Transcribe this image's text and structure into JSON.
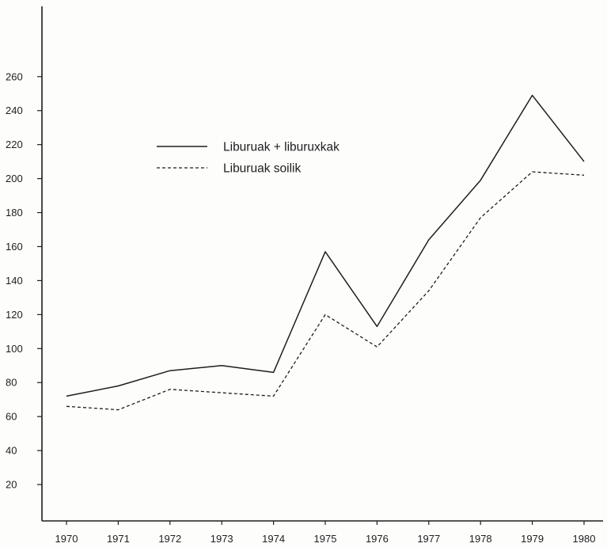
{
  "chart_data": {
    "type": "line",
    "x": [
      "1970",
      "1971",
      "1972",
      "1973",
      "1974",
      "1975",
      "1976",
      "1977",
      "1978",
      "1979",
      "1980"
    ],
    "series": [
      {
        "name": "Liburuak + liburuxkak",
        "style": "solid",
        "values": [
          72,
          78,
          87,
          90,
          86,
          157,
          113,
          164,
          199,
          249,
          210
        ]
      },
      {
        "name": "Liburuak soilik",
        "style": "dashed",
        "values": [
          66,
          64,
          76,
          74,
          72,
          120,
          101,
          134,
          177,
          204,
          202
        ]
      }
    ],
    "title": "",
    "xlabel": "",
    "ylabel": "",
    "ylim": [
      0,
      280
    ],
    "yticks": [
      20,
      40,
      60,
      80,
      100,
      120,
      140,
      160,
      180,
      200,
      220,
      240,
      260
    ],
    "grid": false,
    "legend_position": "upper-left-center",
    "colors": {
      "line": "#1e1e1e",
      "background": "#fdfdfc"
    }
  }
}
